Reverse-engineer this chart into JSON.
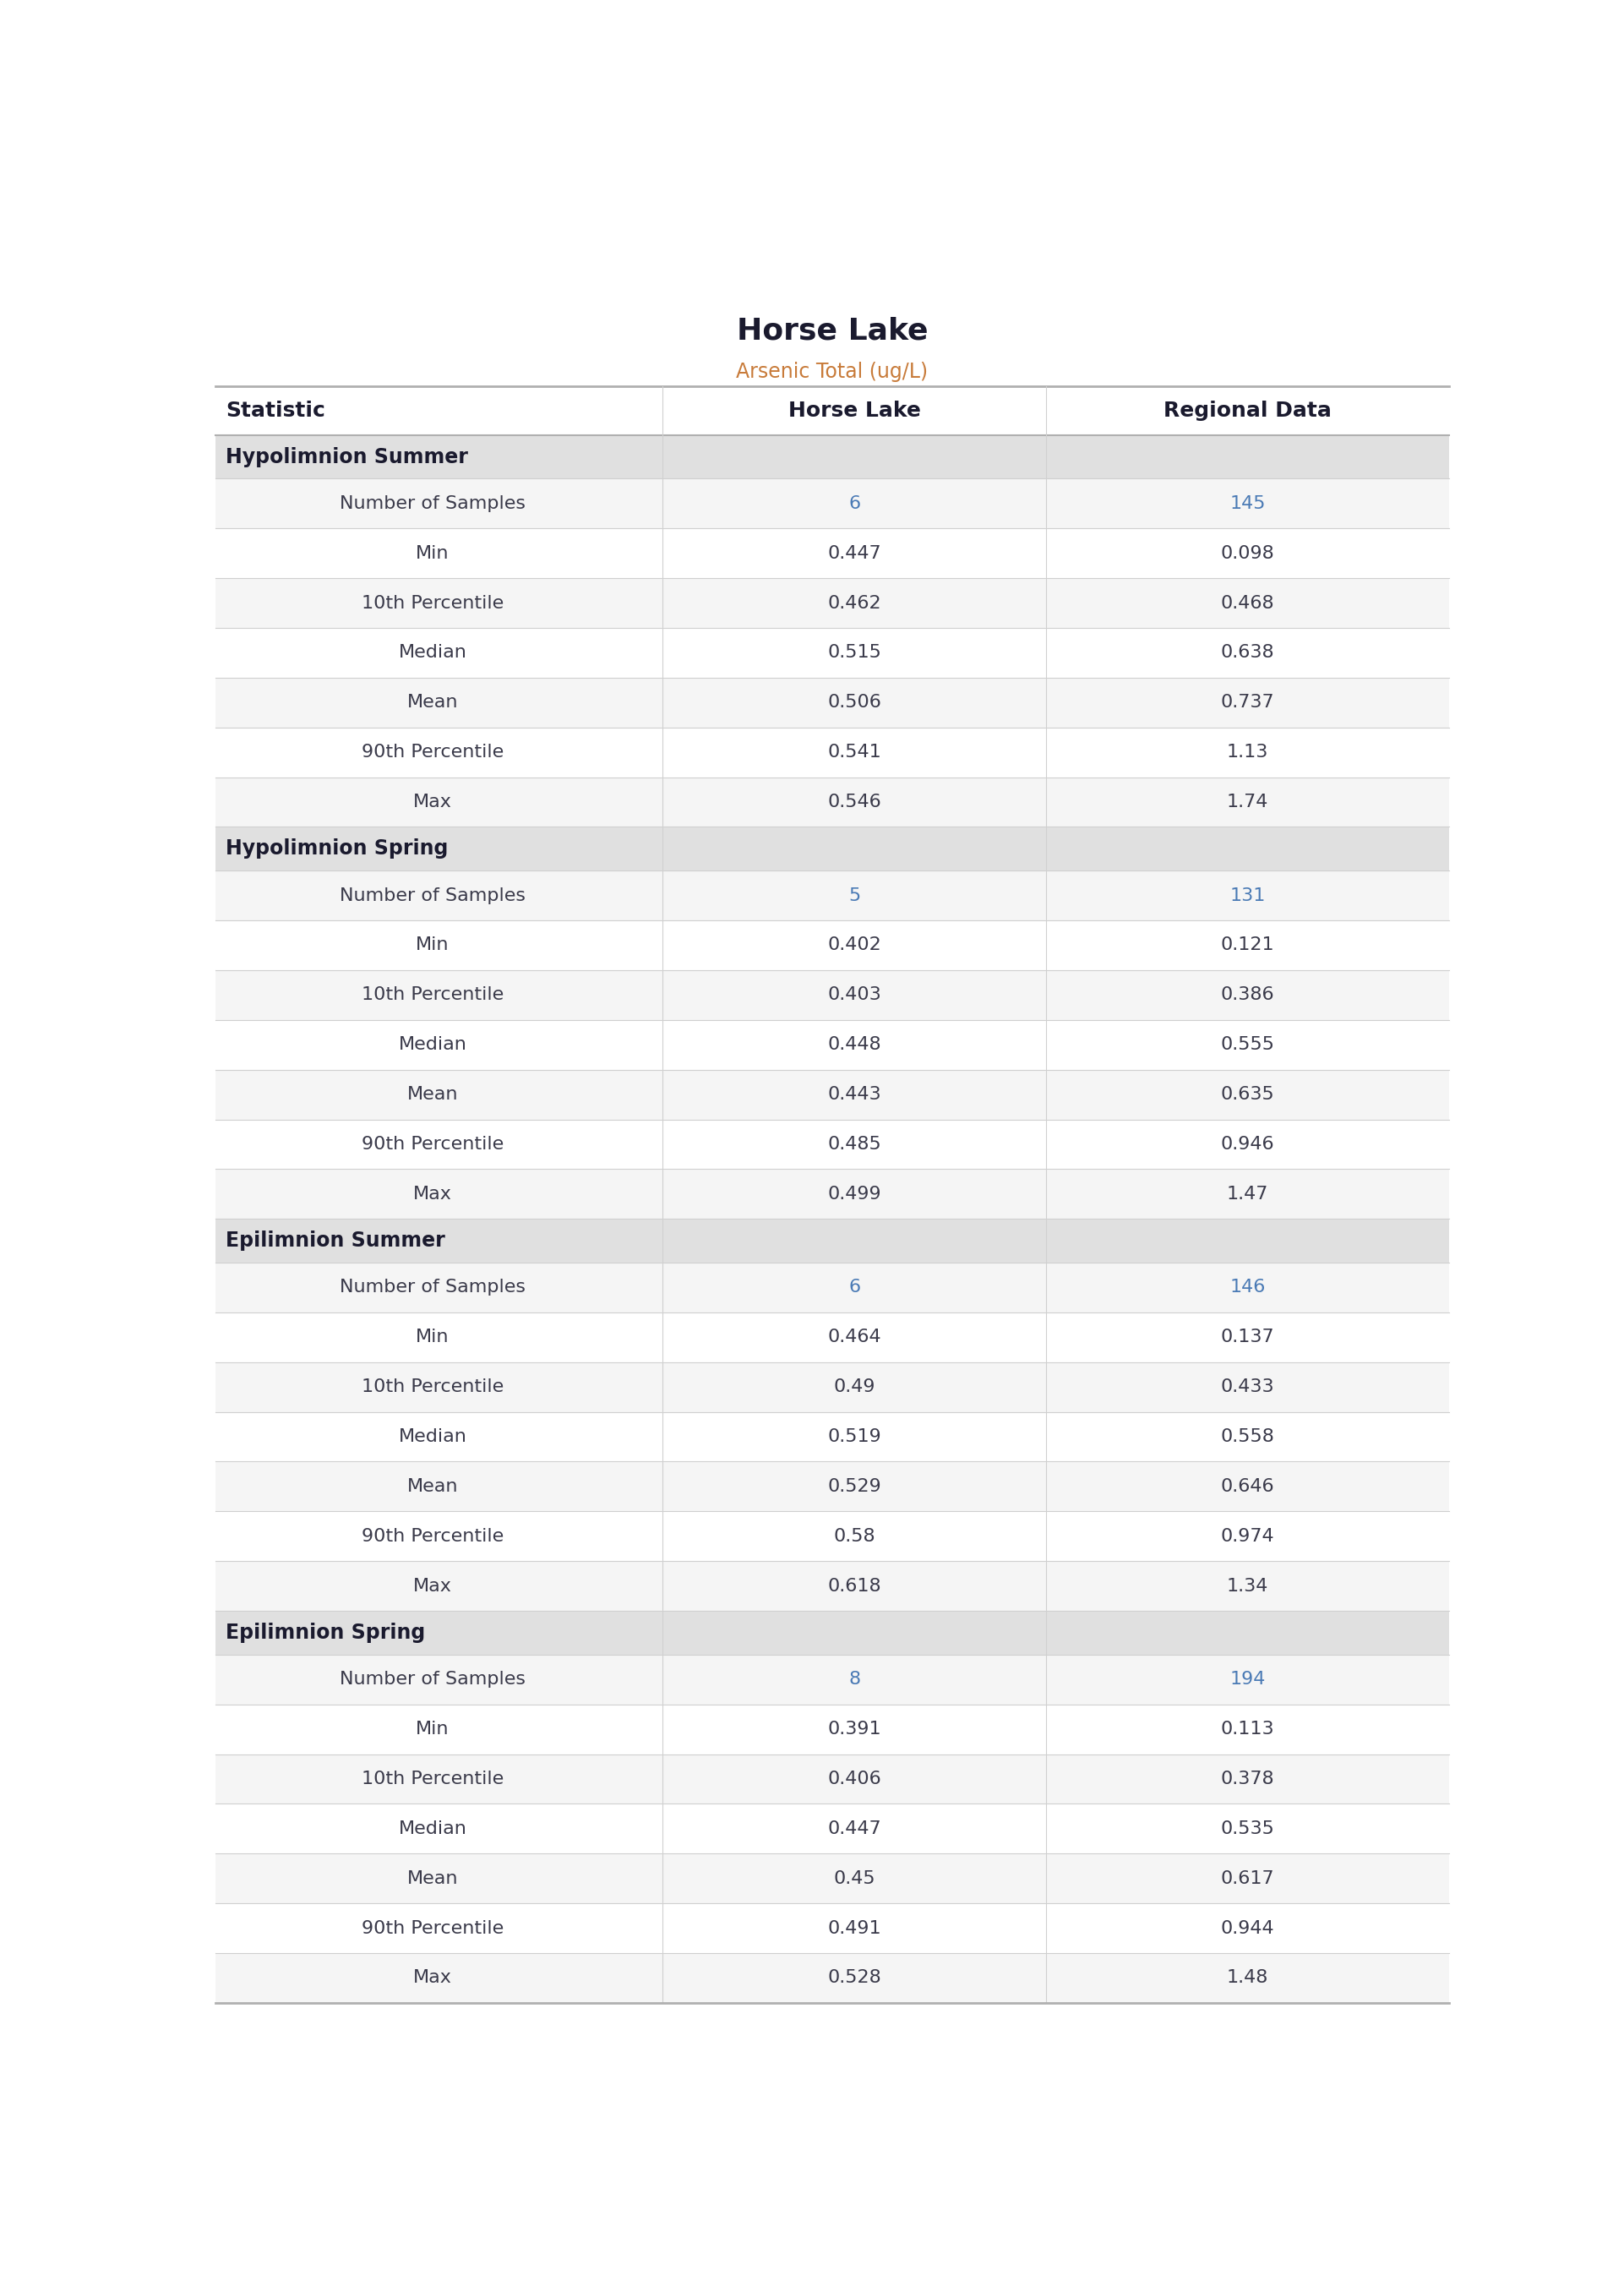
{
  "title": "Horse Lake",
  "subtitle": "Arsenic Total (ug/L)",
  "title_color": "#1a1a2e",
  "subtitle_color": "#c87b3a",
  "col_headers": [
    "Statistic",
    "Horse Lake",
    "Regional Data"
  ],
  "sections": [
    {
      "section_name": "Hypolimnion Summer",
      "rows": [
        [
          "Number of Samples",
          "6",
          "145"
        ],
        [
          "Min",
          "0.447",
          "0.098"
        ],
        [
          "10th Percentile",
          "0.462",
          "0.468"
        ],
        [
          "Median",
          "0.515",
          "0.638"
        ],
        [
          "Mean",
          "0.506",
          "0.737"
        ],
        [
          "90th Percentile",
          "0.541",
          "1.13"
        ],
        [
          "Max",
          "0.546",
          "1.74"
        ]
      ]
    },
    {
      "section_name": "Hypolimnion Spring",
      "rows": [
        [
          "Number of Samples",
          "5",
          "131"
        ],
        [
          "Min",
          "0.402",
          "0.121"
        ],
        [
          "10th Percentile",
          "0.403",
          "0.386"
        ],
        [
          "Median",
          "0.448",
          "0.555"
        ],
        [
          "Mean",
          "0.443",
          "0.635"
        ],
        [
          "90th Percentile",
          "0.485",
          "0.946"
        ],
        [
          "Max",
          "0.499",
          "1.47"
        ]
      ]
    },
    {
      "section_name": "Epilimnion Summer",
      "rows": [
        [
          "Number of Samples",
          "6",
          "146"
        ],
        [
          "Min",
          "0.464",
          "0.137"
        ],
        [
          "10th Percentile",
          "0.49",
          "0.433"
        ],
        [
          "Median",
          "0.519",
          "0.558"
        ],
        [
          "Mean",
          "0.529",
          "0.646"
        ],
        [
          "90th Percentile",
          "0.58",
          "0.974"
        ],
        [
          "Max",
          "0.618",
          "1.34"
        ]
      ]
    },
    {
      "section_name": "Epilimnion Spring",
      "rows": [
        [
          "Number of Samples",
          "8",
          "194"
        ],
        [
          "Min",
          "0.391",
          "0.113"
        ],
        [
          "10th Percentile",
          "0.406",
          "0.378"
        ],
        [
          "Median",
          "0.447",
          "0.535"
        ],
        [
          "Mean",
          "0.45",
          "0.617"
        ],
        [
          "90th Percentile",
          "0.491",
          "0.944"
        ],
        [
          "Max",
          "0.528",
          "1.48"
        ]
      ]
    }
  ],
  "header_bg": "#ffffff",
  "section_bg": "#e0e0e0",
  "row_bg_odd": "#f5f5f5",
  "row_bg_even": "#ffffff",
  "border_color": "#d0d0d0",
  "top_border_color": "#b0b0b0",
  "header_text_color": "#1a1a2e",
  "section_text_color": "#1a1a2e",
  "data_text_color": "#3a3a4a",
  "num_samples_color": "#4a7ab5",
  "title_fontsize": 26,
  "subtitle_fontsize": 17,
  "header_fontsize": 18,
  "section_fontsize": 17,
  "data_fontsize": 16
}
